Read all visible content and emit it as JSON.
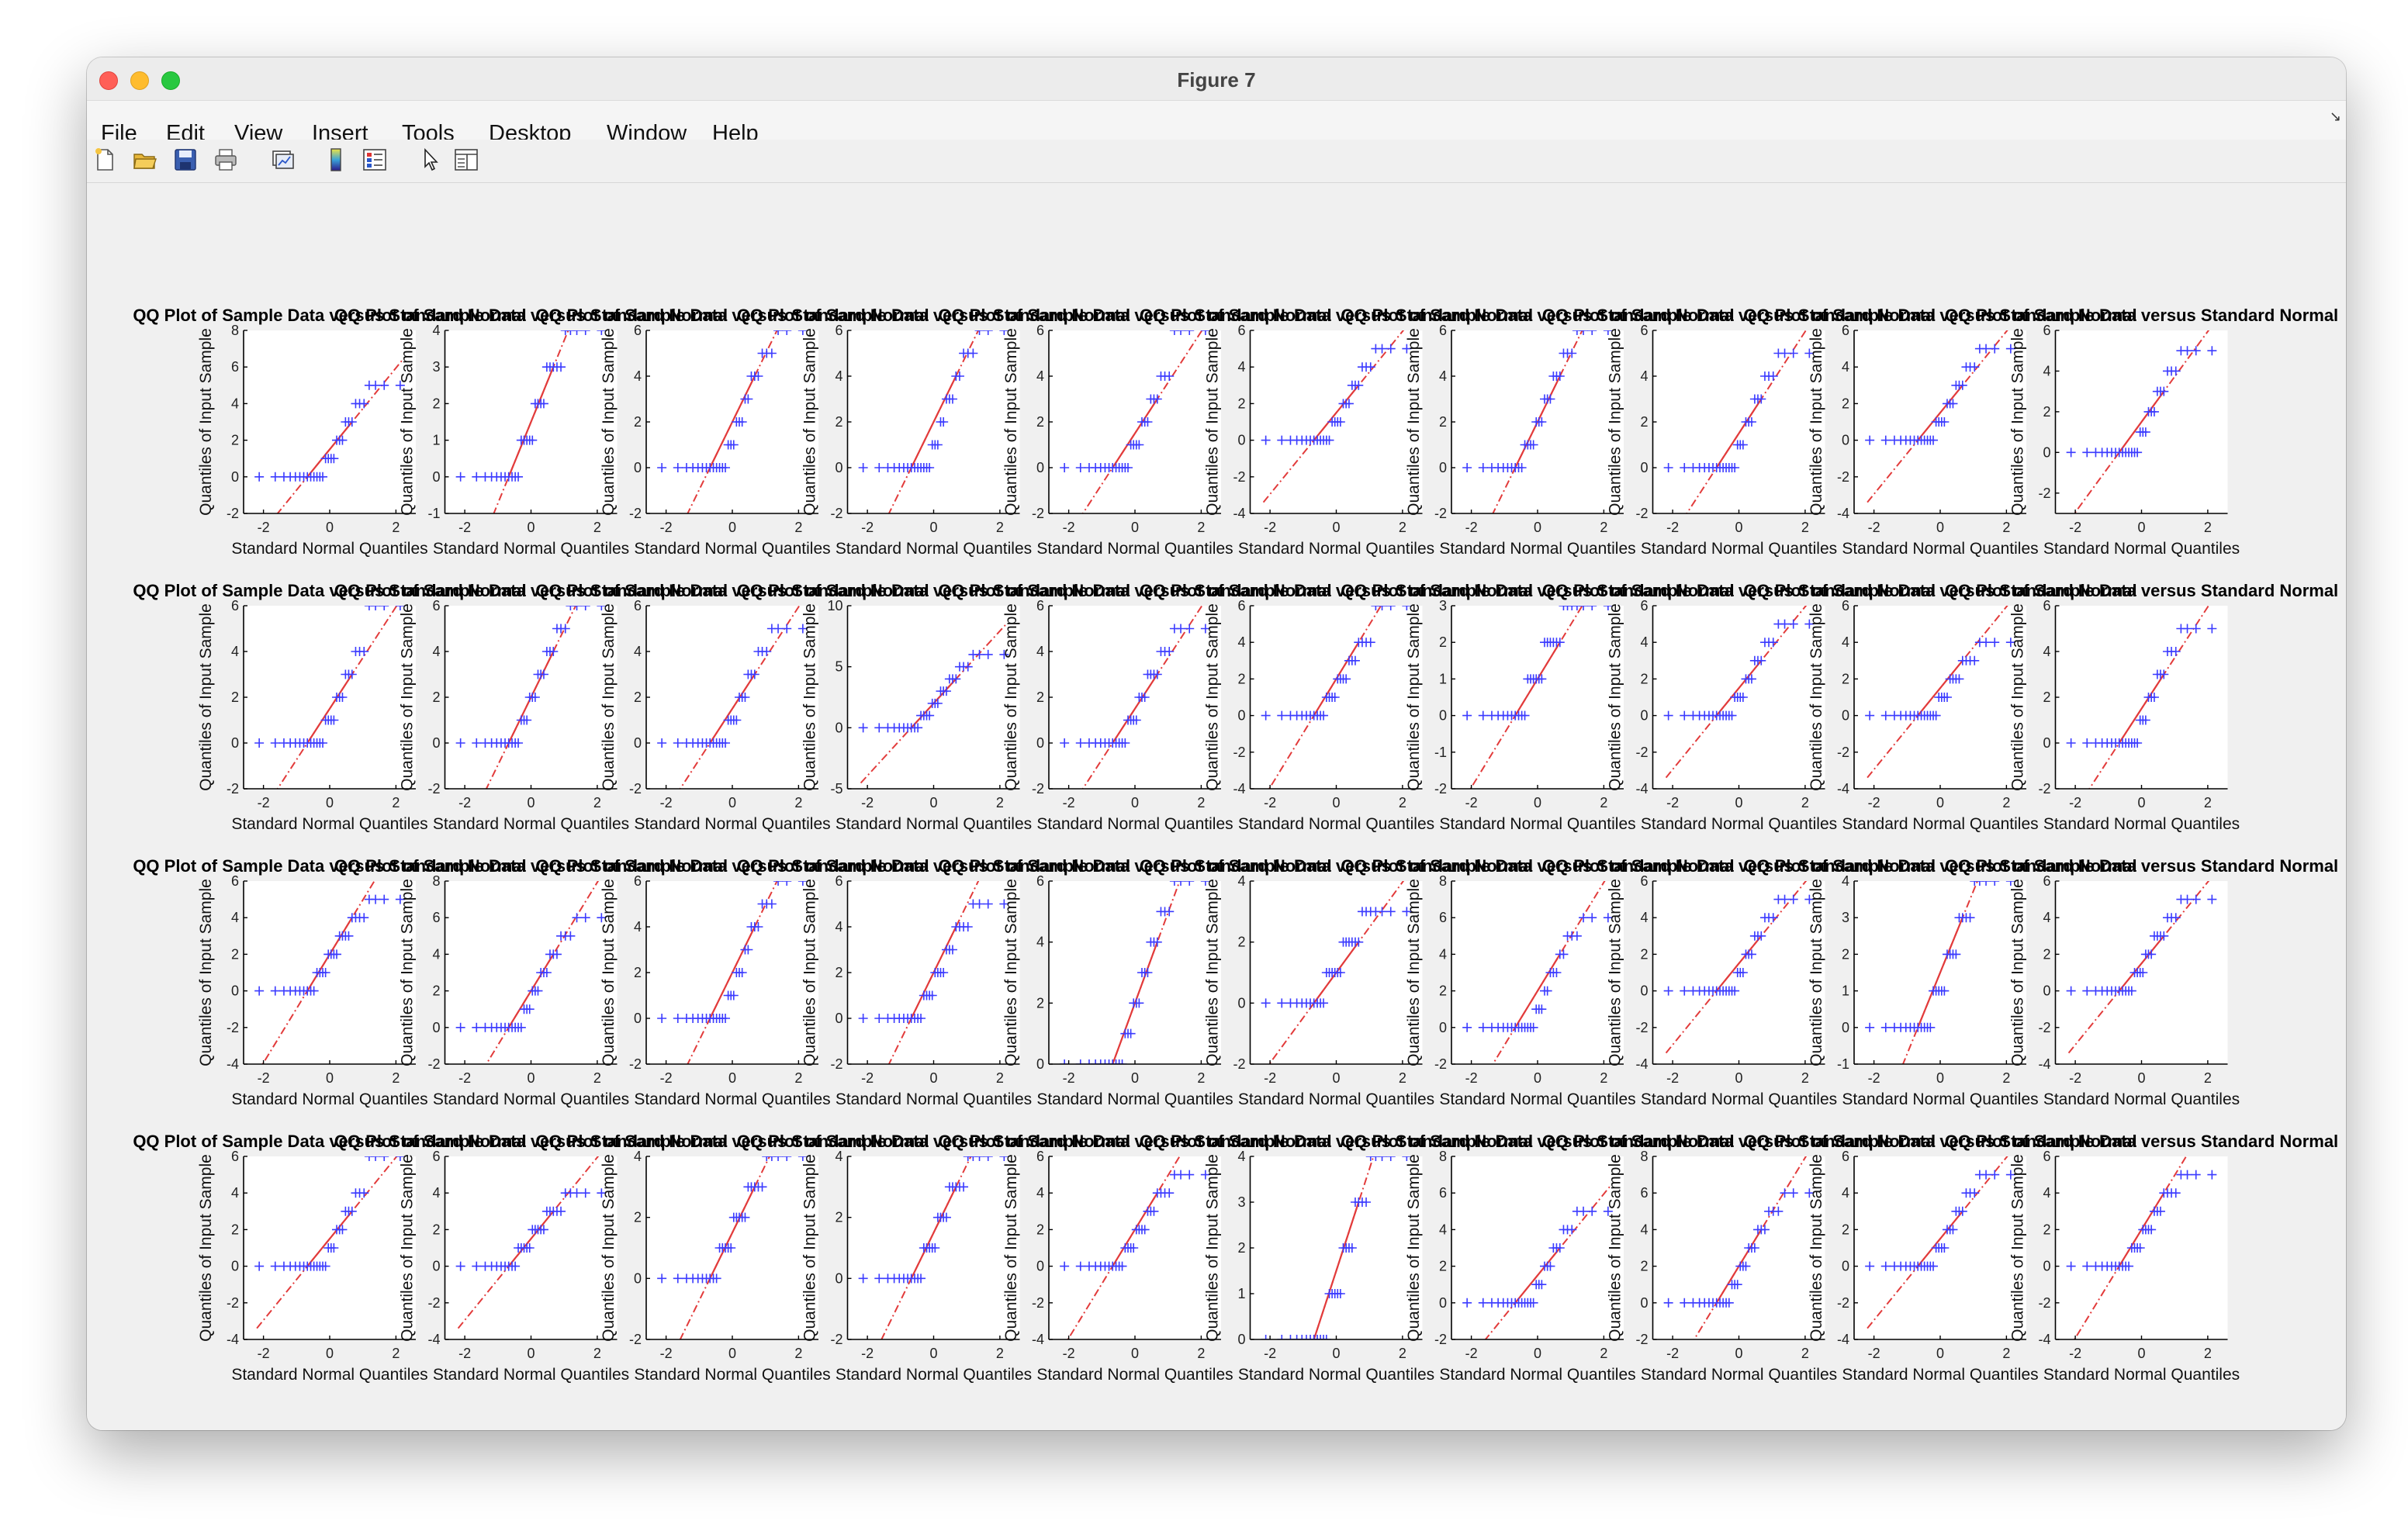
{
  "window": {
    "title": "Figure 7"
  },
  "menu": [
    {
      "label": "File"
    },
    {
      "label": "Edit"
    },
    {
      "label": "View"
    },
    {
      "label": "Insert"
    },
    {
      "label": "Tools"
    },
    {
      "label": "Desktop"
    },
    {
      "label": "Window"
    },
    {
      "label": "Help"
    }
  ],
  "toolbar": {
    "icons": [
      "new-figure-icon",
      "open-file-icon",
      "save-icon",
      "print-icon",
      "link-plot-icon",
      "insert-colorbar-icon",
      "insert-legend-icon",
      "edit-plot-icon",
      "property-editor-icon"
    ]
  },
  "colors": {
    "points": "#3b3bff",
    "refline": "#e23b3b",
    "axes": "#000000",
    "figure_bg": "#f0f0f0",
    "axes_bg": "#ffffff"
  },
  "chart_data": {
    "type": "scatter",
    "layout": "4x10 subplot grid (QQ plots)",
    "title": "QQ Plot of Sample Data versus Standard Normal",
    "xlabel": "Standard Normal Quantiles",
    "ylabel": "Quantiles of Input Sample",
    "xlim": [
      -2.6,
      2.6
    ],
    "xticks": [
      -2,
      0,
      2
    ],
    "marker": "+",
    "refline_style": "dash-dot",
    "panels": [
      {
        "row": 1,
        "col": 1,
        "ylim": [
          -2,
          8
        ],
        "yticks": [
          -2,
          0,
          2,
          4,
          6,
          8
        ],
        "levels": [
          0,
          1,
          2,
          3,
          4,
          5
        ]
      },
      {
        "row": 1,
        "col": 2,
        "ylim": [
          -1,
          4
        ],
        "yticks": [
          -1,
          0,
          1,
          2,
          3,
          4
        ],
        "levels": [
          0,
          1,
          2,
          3,
          4
        ]
      },
      {
        "row": 1,
        "col": 3,
        "ylim": [
          -2,
          6
        ],
        "yticks": [
          -2,
          0,
          2,
          4,
          6
        ],
        "levels": [
          0,
          1,
          2,
          3,
          4,
          5,
          6
        ]
      },
      {
        "row": 1,
        "col": 4,
        "ylim": [
          -2,
          6
        ],
        "yticks": [
          -2,
          0,
          2,
          4,
          6
        ],
        "levels": [
          0,
          1,
          2,
          3,
          4,
          5,
          6
        ]
      },
      {
        "row": 1,
        "col": 5,
        "ylim": [
          -2,
          6
        ],
        "yticks": [
          -2,
          0,
          2,
          4,
          6
        ],
        "levels": [
          0,
          1,
          2,
          3,
          4,
          6
        ]
      },
      {
        "row": 1,
        "col": 6,
        "ylim": [
          -4,
          6
        ],
        "yticks": [
          -4,
          -2,
          0,
          2,
          4,
          6
        ],
        "levels": [
          0,
          1,
          2,
          3,
          4,
          5
        ]
      },
      {
        "row": 1,
        "col": 7,
        "ylim": [
          -2,
          6
        ],
        "yticks": [
          -2,
          0,
          2,
          4,
          6
        ],
        "levels": [
          0,
          1,
          2,
          3,
          4,
          5,
          6
        ]
      },
      {
        "row": 1,
        "col": 8,
        "ylim": [
          -2,
          6
        ],
        "yticks": [
          -2,
          0,
          2,
          4,
          6
        ],
        "levels": [
          0,
          1,
          2,
          3,
          4,
          5
        ]
      },
      {
        "row": 1,
        "col": 9,
        "ylim": [
          -4,
          6
        ],
        "yticks": [
          -4,
          -2,
          0,
          2,
          4,
          6
        ],
        "levels": [
          0,
          1,
          2,
          3,
          4,
          5
        ]
      },
      {
        "row": 1,
        "col": 10,
        "ylim": [
          -3,
          6
        ],
        "yticks": [
          -2,
          0,
          2,
          4,
          6
        ],
        "levels": [
          0,
          1,
          2,
          3,
          4,
          5
        ]
      },
      {
        "row": 2,
        "col": 1,
        "ylim": [
          -2,
          6
        ],
        "yticks": [
          -2,
          0,
          2,
          4,
          6
        ],
        "levels": [
          0,
          1,
          2,
          3,
          4,
          6
        ]
      },
      {
        "row": 2,
        "col": 2,
        "ylim": [
          -2,
          6
        ],
        "yticks": [
          -2,
          0,
          2,
          4,
          6
        ],
        "levels": [
          0,
          1,
          2,
          3,
          4,
          5,
          6
        ]
      },
      {
        "row": 2,
        "col": 3,
        "ylim": [
          -2,
          6
        ],
        "yticks": [
          -2,
          0,
          2,
          4,
          6
        ],
        "levels": [
          0,
          1,
          2,
          3,
          4,
          5
        ]
      },
      {
        "row": 2,
        "col": 4,
        "ylim": [
          -5,
          10
        ],
        "yticks": [
          -5,
          0,
          5,
          10
        ],
        "levels": [
          0,
          1,
          2,
          3,
          4,
          5,
          6
        ]
      },
      {
        "row": 2,
        "col": 5,
        "ylim": [
          -2,
          6
        ],
        "yticks": [
          -2,
          0,
          2,
          4,
          6
        ],
        "levels": [
          0,
          1,
          2,
          3,
          4,
          5
        ]
      },
      {
        "row": 2,
        "col": 6,
        "ylim": [
          -4,
          6
        ],
        "yticks": [
          -4,
          -2,
          0,
          2,
          4,
          6
        ],
        "levels": [
          0,
          1,
          2,
          3,
          4,
          6
        ]
      },
      {
        "row": 2,
        "col": 7,
        "ylim": [
          -2,
          3
        ],
        "yticks": [
          -2,
          -1,
          0,
          1,
          2,
          3
        ],
        "levels": [
          0,
          1,
          2,
          3
        ]
      },
      {
        "row": 2,
        "col": 8,
        "ylim": [
          -4,
          6
        ],
        "yticks": [
          -4,
          -2,
          0,
          2,
          4,
          6
        ],
        "levels": [
          0,
          1,
          2,
          3,
          4,
          5
        ]
      },
      {
        "row": 2,
        "col": 9,
        "ylim": [
          -4,
          6
        ],
        "yticks": [
          -4,
          -2,
          0,
          2,
          4,
          6
        ],
        "levels": [
          0,
          1,
          2,
          3,
          4
        ]
      },
      {
        "row": 2,
        "col": 10,
        "ylim": [
          -2,
          6
        ],
        "yticks": [
          -2,
          0,
          2,
          4,
          6
        ],
        "levels": [
          0,
          1,
          2,
          3,
          4,
          5
        ]
      },
      {
        "row": 3,
        "col": 1,
        "ylim": [
          -4,
          6
        ],
        "yticks": [
          -4,
          -2,
          0,
          2,
          4,
          6
        ],
        "levels": [
          0,
          1,
          2,
          3,
          4,
          5
        ]
      },
      {
        "row": 3,
        "col": 2,
        "ylim": [
          -2,
          8
        ],
        "yticks": [
          -2,
          0,
          2,
          4,
          6,
          8
        ],
        "levels": [
          0,
          1,
          2,
          3,
          4,
          5,
          6
        ]
      },
      {
        "row": 3,
        "col": 3,
        "ylim": [
          -2,
          6
        ],
        "yticks": [
          -2,
          0,
          2,
          4,
          6
        ],
        "levels": [
          0,
          1,
          2,
          3,
          4,
          5,
          6
        ]
      },
      {
        "row": 3,
        "col": 4,
        "ylim": [
          -2,
          6
        ],
        "yticks": [
          -2,
          0,
          2,
          4,
          6
        ],
        "levels": [
          0,
          1,
          2,
          3,
          4,
          5
        ]
      },
      {
        "row": 3,
        "col": 5,
        "ylim": [
          0,
          6
        ],
        "yticks": [
          0,
          2,
          4,
          6
        ],
        "levels": [
          0,
          1,
          2,
          3,
          4,
          5,
          6
        ]
      },
      {
        "row": 3,
        "col": 6,
        "ylim": [
          -2,
          4
        ],
        "yticks": [
          -2,
          0,
          2,
          4
        ],
        "levels": [
          0,
          1,
          2,
          3
        ]
      },
      {
        "row": 3,
        "col": 7,
        "ylim": [
          -2,
          8
        ],
        "yticks": [
          -2,
          0,
          2,
          4,
          6,
          8
        ],
        "levels": [
          0,
          1,
          2,
          3,
          4,
          5,
          6
        ]
      },
      {
        "row": 3,
        "col": 8,
        "ylim": [
          -4,
          6
        ],
        "yticks": [
          -4,
          -2,
          0,
          2,
          4,
          6
        ],
        "levels": [
          0,
          1,
          2,
          3,
          4,
          5
        ]
      },
      {
        "row": 3,
        "col": 9,
        "ylim": [
          -1,
          4
        ],
        "yticks": [
          -1,
          0,
          1,
          2,
          3,
          4
        ],
        "levels": [
          0,
          1,
          2,
          3,
          4
        ]
      },
      {
        "row": 3,
        "col": 10,
        "ylim": [
          -4,
          6
        ],
        "yticks": [
          -4,
          -2,
          0,
          2,
          4,
          6
        ],
        "levels": [
          0,
          1,
          2,
          3,
          4,
          5
        ]
      },
      {
        "row": 4,
        "col": 1,
        "ylim": [
          -4,
          6
        ],
        "yticks": [
          -4,
          -2,
          0,
          2,
          4,
          6
        ],
        "levels": [
          0,
          1,
          2,
          3,
          4,
          6
        ]
      },
      {
        "row": 4,
        "col": 2,
        "ylim": [
          -4,
          6
        ],
        "yticks": [
          -4,
          -2,
          0,
          2,
          4,
          6
        ],
        "levels": [
          0,
          1,
          2,
          3,
          4
        ]
      },
      {
        "row": 4,
        "col": 3,
        "ylim": [
          -2,
          4
        ],
        "yticks": [
          -2,
          0,
          2,
          4
        ],
        "levels": [
          0,
          1,
          2,
          3,
          4
        ]
      },
      {
        "row": 4,
        "col": 4,
        "ylim": [
          -2,
          4
        ],
        "yticks": [
          -2,
          0,
          2,
          4
        ],
        "levels": [
          0,
          1,
          2,
          3,
          4
        ]
      },
      {
        "row": 4,
        "col": 5,
        "ylim": [
          -4,
          6
        ],
        "yticks": [
          -4,
          -2,
          0,
          2,
          4,
          6
        ],
        "levels": [
          0,
          1,
          2,
          3,
          4,
          5
        ]
      },
      {
        "row": 4,
        "col": 6,
        "ylim": [
          0,
          4
        ],
        "yticks": [
          0,
          1,
          2,
          3,
          4
        ],
        "levels": [
          0,
          1,
          2,
          3,
          4
        ]
      },
      {
        "row": 4,
        "col": 7,
        "ylim": [
          -2,
          8
        ],
        "yticks": [
          -2,
          0,
          2,
          4,
          6,
          8
        ],
        "levels": [
          0,
          1,
          2,
          3,
          4,
          5
        ]
      },
      {
        "row": 4,
        "col": 8,
        "ylim": [
          -2,
          8
        ],
        "yticks": [
          -2,
          0,
          2,
          4,
          6,
          8
        ],
        "levels": [
          0,
          1,
          2,
          3,
          4,
          5,
          6
        ]
      },
      {
        "row": 4,
        "col": 9,
        "ylim": [
          -4,
          6
        ],
        "yticks": [
          -4,
          -2,
          0,
          2,
          4,
          6
        ],
        "levels": [
          0,
          1,
          2,
          3,
          4,
          5
        ]
      },
      {
        "row": 4,
        "col": 10,
        "ylim": [
          -4,
          6
        ],
        "yticks": [
          -4,
          -2,
          0,
          2,
          4,
          6
        ],
        "levels": [
          0,
          1,
          2,
          3,
          4,
          5
        ]
      }
    ]
  }
}
